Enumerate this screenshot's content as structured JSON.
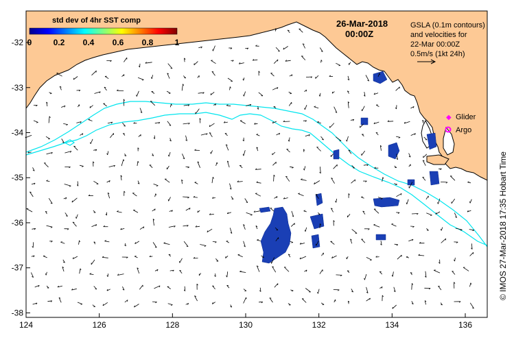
{
  "title": {
    "date": "26-Mar-2018",
    "time": "00:00Z"
  },
  "colorbar": {
    "title": "std dev of 4hr SST comp",
    "ticks": [
      "0",
      "0.2",
      "0.4",
      "0.6",
      "0.8",
      "1"
    ],
    "colors": [
      "#00008f",
      "#0000ff",
      "#0080ff",
      "#00ffff",
      "#80ff80",
      "#ffff00",
      "#ff8000",
      "#ff0000",
      "#800000"
    ]
  },
  "info": {
    "line1": "GSLA (0.1m contours)",
    "line2": "and velocities for",
    "line3": "22-Mar 00:00Z",
    "line4": "0.5m/s (1kt 24h)"
  },
  "legend": {
    "glider": "Glider",
    "argo": "Argo",
    "glider_color": "#ff00ff",
    "argo_color": "#ff00ff"
  },
  "axes": {
    "x_ticks": [
      "124",
      "126",
      "128",
      "130",
      "132",
      "134",
      "136"
    ],
    "y_ticks": [
      "-32",
      "-33",
      "-34",
      "-35",
      "-36",
      "-37",
      "-38"
    ],
    "xlim": [
      124,
      136.6
    ],
    "ylim": [
      -38.1,
      -31.3
    ]
  },
  "credit": "© IMOS 27-Mar-2018 17:35 Hobart Time",
  "colors": {
    "land": "#fdc995",
    "contour": "#00e5ee",
    "patch": "#1a3fb5",
    "ocean": "#ffffff"
  }
}
